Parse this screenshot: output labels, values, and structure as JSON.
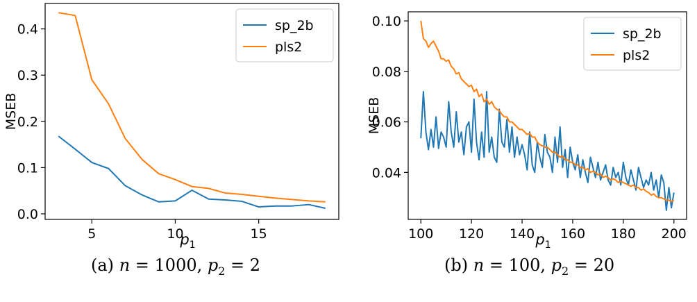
{
  "colors": {
    "series_0": "#1f77b4",
    "series_1": "#ff7f0e",
    "axis": "#000000",
    "background": "#ffffff"
  },
  "captions": {
    "a": {
      "label": "(a)",
      "n_sym": "n",
      "eq1": " = 1000, ",
      "p_sym": "p",
      "p_sub": "2",
      "eq2": " = 2"
    },
    "b": {
      "label": "(b)",
      "n_sym": "n",
      "eq1": " = 100, ",
      "p_sym": "p",
      "p_sub": "2",
      "eq2": " = 20"
    }
  },
  "chart_data": [
    {
      "type": "line",
      "title": "",
      "xlabel": "p",
      "xlabel_sub": "1",
      "ylabel": "MSEB",
      "xlim": [
        2.2,
        19.8
      ],
      "ylim": [
        -0.012,
        0.455
      ],
      "xticks": [
        5,
        10,
        15
      ],
      "yticks": [
        0.0,
        0.1,
        0.2,
        0.3,
        0.4
      ],
      "ytick_labels": [
        "0.0",
        "0.1",
        "0.2",
        "0.3",
        "0.4"
      ],
      "grid": false,
      "legend_position": "top-right",
      "series": [
        {
          "name": "sp_2b",
          "x": [
            3,
            4,
            5,
            6,
            7,
            8,
            9,
            10,
            11,
            12,
            13,
            14,
            15,
            16,
            17,
            18,
            19
          ],
          "values": [
            0.168,
            0.14,
            0.111,
            0.098,
            0.061,
            0.041,
            0.026,
            0.028,
            0.051,
            0.032,
            0.03,
            0.027,
            0.015,
            0.017,
            0.017,
            0.02,
            0.012
          ]
        },
        {
          "name": "pls2",
          "x": [
            3,
            4,
            5,
            6,
            7,
            8,
            9,
            10,
            11,
            12,
            13,
            14,
            15,
            16,
            17,
            18,
            19
          ],
          "values": [
            0.435,
            0.429,
            0.29,
            0.238,
            0.163,
            0.118,
            0.087,
            0.074,
            0.059,
            0.055,
            0.045,
            0.042,
            0.038,
            0.034,
            0.031,
            0.028,
            0.026
          ]
        }
      ]
    },
    {
      "type": "line",
      "title": "",
      "xlabel": "p",
      "xlabel_sub": "1",
      "ylabel": "MSEB",
      "xlim": [
        95,
        205
      ],
      "ylim": [
        0.0214,
        0.1036
      ],
      "xticks": [
        100,
        120,
        140,
        160,
        180,
        200
      ],
      "yticks": [
        0.04,
        0.06,
        0.08,
        0.1
      ],
      "ytick_labels": [
        "0.04",
        "0.06",
        "0.08",
        "0.10"
      ],
      "grid": false,
      "legend_position": "top-right",
      "series": [
        {
          "name": "sp_2b",
          "x_start": 100,
          "x_step": 1,
          "values": [
            0.0535,
            0.072,
            0.056,
            0.049,
            0.057,
            0.05,
            0.062,
            0.0495,
            0.056,
            0.054,
            0.05,
            0.068,
            0.056,
            0.05,
            0.064,
            0.052,
            0.056,
            0.047,
            0.058,
            0.06,
            0.048,
            0.069,
            0.052,
            0.045,
            0.056,
            0.046,
            0.072,
            0.048,
            0.054,
            0.046,
            0.044,
            0.065,
            0.052,
            0.05,
            0.061,
            0.048,
            0.058,
            0.046,
            0.054,
            0.047,
            0.051,
            0.047,
            0.041,
            0.056,
            0.043,
            0.04,
            0.052,
            0.046,
            0.042,
            0.055,
            0.048,
            0.046,
            0.04,
            0.054,
            0.044,
            0.058,
            0.042,
            0.049,
            0.038,
            0.05,
            0.044,
            0.041,
            0.047,
            0.038,
            0.045,
            0.04,
            0.036,
            0.046,
            0.042,
            0.038,
            0.044,
            0.037,
            0.04,
            0.043,
            0.037,
            0.035,
            0.042,
            0.038,
            0.04,
            0.035,
            0.044,
            0.038,
            0.035,
            0.041,
            0.037,
            0.033,
            0.042,
            0.038,
            0.034,
            0.037,
            0.035,
            0.04,
            0.033,
            0.037,
            0.03,
            0.039,
            0.036,
            0.025,
            0.034,
            0.026,
            0.032
          ]
        },
        {
          "name": "pls2",
          "x_start": 100,
          "x_step": 1,
          "values": [
            0.1,
            0.093,
            0.092,
            0.0895,
            0.091,
            0.092,
            0.09,
            0.088,
            0.085,
            0.085,
            0.084,
            0.0845,
            0.082,
            0.081,
            0.079,
            0.0795,
            0.077,
            0.076,
            0.075,
            0.074,
            0.0745,
            0.072,
            0.073,
            0.07,
            0.071,
            0.068,
            0.069,
            0.067,
            0.068,
            0.066,
            0.065,
            0.0645,
            0.063,
            0.062,
            0.062,
            0.06,
            0.06,
            0.059,
            0.058,
            0.057,
            0.057,
            0.056,
            0.055,
            0.0555,
            0.054,
            0.054,
            0.052,
            0.051,
            0.0505,
            0.05,
            0.05,
            0.049,
            0.048,
            0.048,
            0.047,
            0.046,
            0.0465,
            0.045,
            0.045,
            0.044,
            0.044,
            0.043,
            0.043,
            0.042,
            0.042,
            0.041,
            0.0415,
            0.04,
            0.0405,
            0.04,
            0.039,
            0.0395,
            0.038,
            0.0385,
            0.038,
            0.037,
            0.0375,
            0.037,
            0.036,
            0.0365,
            0.036,
            0.0355,
            0.035,
            0.0345,
            0.035,
            0.034,
            0.034,
            0.033,
            0.0335,
            0.0325,
            0.032,
            0.031,
            0.0315,
            0.0305,
            0.03,
            0.03,
            0.0295,
            0.029,
            0.029,
            0.0285,
            0.029
          ]
        }
      ]
    }
  ]
}
